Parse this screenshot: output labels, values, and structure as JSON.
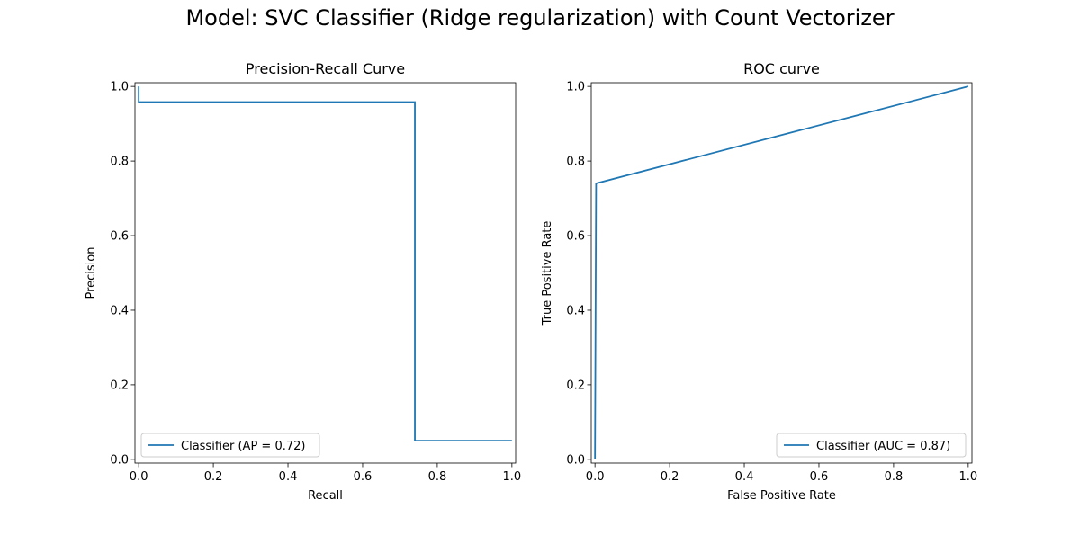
{
  "figure": {
    "suptitle": "Model: SVC Classifier (Ridge regularization) with Count Vectorizer"
  },
  "chart_data": [
    {
      "type": "line",
      "title": "Precision-Recall Curve",
      "xlabel": "Recall",
      "ylabel": "Precision",
      "xlim": [
        -0.01,
        1.01
      ],
      "ylim": [
        -0.01,
        1.01
      ],
      "xticks": [
        "0.0",
        "0.2",
        "0.4",
        "0.6",
        "0.8",
        "1.0"
      ],
      "yticks": [
        "0.0",
        "0.2",
        "0.4",
        "0.6",
        "0.8",
        "1.0"
      ],
      "legend_position": "lower-left",
      "grid": false,
      "series": [
        {
          "name": "Classifier (AP = 0.72)",
          "color": "#1f77b4",
          "drawstyle": "steps-post",
          "x": [
            0.0,
            0.0,
            0.74,
            0.74,
            1.0
          ],
          "y": [
            1.0,
            0.958,
            0.958,
            0.05,
            0.05
          ]
        }
      ]
    },
    {
      "type": "line",
      "title": "ROC curve",
      "xlabel": "False Positive Rate",
      "ylabel": "True Positive Rate",
      "xlim": [
        -0.01,
        1.01
      ],
      "ylim": [
        -0.01,
        1.01
      ],
      "xticks": [
        "0.0",
        "0.2",
        "0.4",
        "0.6",
        "0.8",
        "1.0"
      ],
      "yticks": [
        "0.0",
        "0.2",
        "0.4",
        "0.6",
        "0.8",
        "1.0"
      ],
      "legend_position": "lower-right",
      "grid": false,
      "series": [
        {
          "name": "Classifier (AUC = 0.87)",
          "color": "#1f77b4",
          "x": [
            0.0,
            0.003,
            1.0
          ],
          "y": [
            0.0,
            0.74,
            1.0
          ]
        }
      ]
    }
  ]
}
